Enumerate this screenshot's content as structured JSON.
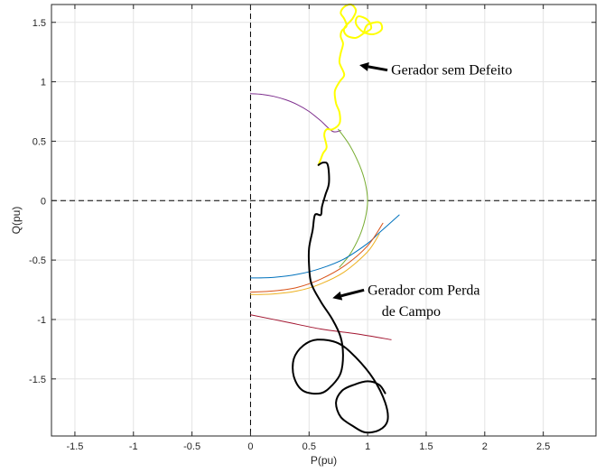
{
  "chart_data": {
    "type": "line",
    "xlabel": "P(pu)",
    "ylabel": "Q(pu)",
    "xlim": [
      -1.7,
      2.95
    ],
    "ylim": [
      -1.98,
      1.65
    ],
    "grid": true,
    "xticks": [
      -1.5,
      -1,
      -0.5,
      0,
      0.5,
      1,
      1.5,
      2,
      2.5
    ],
    "xtick_labels": [
      "-1.5",
      "-1",
      "-0.5",
      "0",
      "0.5",
      "1",
      "1.5",
      "2",
      "2.5"
    ],
    "yticks": [
      -1.5,
      -1,
      -0.5,
      0,
      0.5,
      1,
      1.5
    ],
    "ytick_labels": [
      "-1.5",
      "-1",
      "-0.5",
      "0",
      "0.5",
      "1",
      "1.5"
    ],
    "annotations": [
      {
        "text": "Gerador sem Defeito",
        "x": 1.2,
        "y": 1.06,
        "arrow_to": [
          0.93,
          1.14
        ]
      },
      {
        "text": "Gerador com Perda",
        "x": 1.0,
        "y": -0.79,
        "arrow_to": [
          0.7,
          -0.82
        ]
      },
      {
        "text": "de Campo",
        "x": 1.12,
        "y": -0.97
      }
    ],
    "series": [
      {
        "color": "#7e2f8e",
        "width": 1,
        "dashed": false,
        "x": [
          0.0,
          0.1,
          0.2,
          0.3,
          0.4,
          0.5,
          0.6,
          0.7,
          0.77
        ],
        "y": [
          0.9,
          0.894,
          0.877,
          0.849,
          0.808,
          0.75,
          0.671,
          0.583,
          0.59
        ]
      },
      {
        "color": "#77ac30",
        "width": 1,
        "dashed": false,
        "x": [
          0.75,
          0.85,
          0.93,
          0.98,
          1.0,
          0.98,
          0.93,
          0.85,
          0.76
        ],
        "y": [
          0.6,
          0.46,
          0.3,
          0.15,
          0.0,
          -0.15,
          -0.3,
          -0.45,
          -0.56
        ]
      },
      {
        "color": "#0072bd",
        "width": 1,
        "dashed": false,
        "x": [
          0.0,
          0.2,
          0.4,
          0.6,
          0.8,
          1.0,
          1.1,
          1.27
        ],
        "y": [
          -0.65,
          -0.645,
          -0.62,
          -0.57,
          -0.49,
          -0.36,
          -0.27,
          -0.12
        ]
      },
      {
        "color": "#d95319",
        "width": 1,
        "dashed": false,
        "x": [
          0.0,
          0.2,
          0.4,
          0.6,
          0.8,
          1.0,
          1.13
        ],
        "y": [
          -0.77,
          -0.76,
          -0.73,
          -0.66,
          -0.55,
          -0.38,
          -0.19
        ]
      },
      {
        "color": "#edb120",
        "width": 1,
        "dashed": false,
        "x": [
          0.0,
          0.2,
          0.4,
          0.6,
          0.8,
          1.0,
          1.1
        ],
        "y": [
          -0.79,
          -0.785,
          -0.76,
          -0.7,
          -0.6,
          -0.43,
          -0.28
        ]
      },
      {
        "color": "#a2142f",
        "width": 1,
        "dashed": false,
        "x": [
          0.0,
          0.3,
          0.6,
          0.9,
          1.2
        ],
        "y": [
          -0.96,
          -1.02,
          -1.08,
          -1.12,
          -1.17
        ]
      },
      {
        "color": "#ffff00",
        "width": 2,
        "dashed": false,
        "x": [
          0.58,
          0.6,
          0.62,
          0.65,
          0.63,
          0.65,
          0.7,
          0.76,
          0.76,
          0.73,
          0.72,
          0.76,
          0.8,
          0.76,
          0.77,
          0.79,
          0.77,
          0.78,
          0.82,
          0.8,
          0.77,
          0.8,
          0.86,
          0.9,
          0.87,
          0.8,
          0.82,
          0.9,
          0.97,
          1.03,
          1.0,
          0.92,
          0.9,
          0.96,
          1.05,
          1.12,
          1.1,
          1.0,
          0.97
        ],
        "y": [
          0.3,
          0.35,
          0.4,
          0.45,
          0.55,
          0.6,
          0.6,
          0.65,
          0.74,
          0.82,
          0.92,
          1.0,
          1.06,
          1.16,
          1.24,
          1.32,
          1.38,
          1.43,
          1.47,
          1.53,
          1.58,
          1.63,
          1.65,
          1.6,
          1.53,
          1.45,
          1.39,
          1.37,
          1.41,
          1.45,
          1.52,
          1.55,
          1.49,
          1.42,
          1.4,
          1.44,
          1.5,
          1.48,
          1.42
        ]
      },
      {
        "color": "#000000",
        "width": 2,
        "dashed": false,
        "x": [
          0.58,
          0.62,
          0.66,
          0.67,
          0.64,
          0.61,
          0.6,
          0.55,
          0.53,
          0.5,
          0.5,
          0.52,
          0.6,
          0.7,
          0.77,
          0.79,
          0.77,
          0.7,
          0.6,
          0.45,
          0.37,
          0.37,
          0.45,
          0.57,
          0.75,
          0.9,
          1.05,
          1.15,
          1.17,
          1.1,
          0.98,
          0.88,
          0.77,
          0.73,
          0.78,
          0.88,
          1.0,
          1.1,
          1.15
        ],
        "y": [
          0.3,
          0.32,
          0.3,
          0.15,
          0.05,
          -0.05,
          -0.12,
          -0.12,
          -0.25,
          -0.4,
          -0.55,
          -0.7,
          -0.85,
          -1.0,
          -1.15,
          -1.3,
          -1.45,
          -1.55,
          -1.62,
          -1.6,
          -1.48,
          -1.33,
          -1.22,
          -1.17,
          -1.2,
          -1.32,
          -1.5,
          -1.7,
          -1.85,
          -1.93,
          -1.95,
          -1.9,
          -1.82,
          -1.7,
          -1.6,
          -1.55,
          -1.52,
          -1.55,
          -1.62
        ]
      }
    ],
    "reference_lines": [
      {
        "orientation": "vertical",
        "value": 0,
        "color": "#000000",
        "dashed": true
      },
      {
        "orientation": "horizontal",
        "value": 0,
        "color": "#000000",
        "dashed": true
      }
    ]
  }
}
